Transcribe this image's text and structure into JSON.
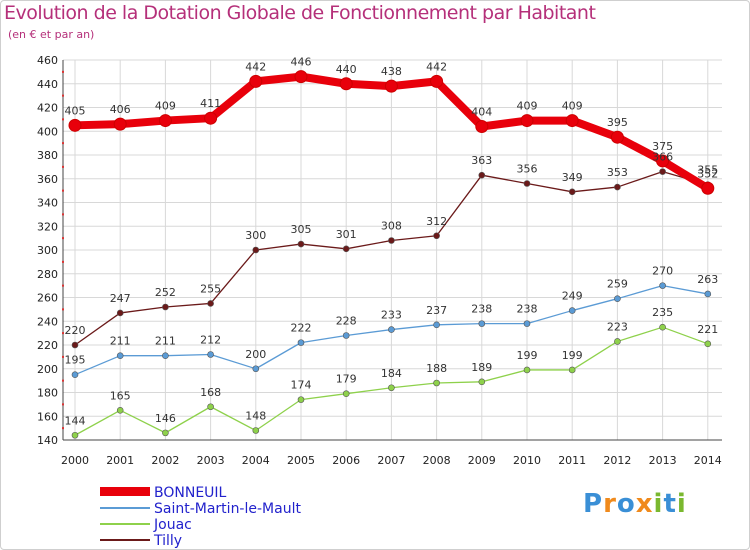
{
  "chart_data": {
    "type": "line",
    "title": "Evolution de la Dotation Globale de Fonctionnement par Habitant",
    "subtitle": "(en € et par an)",
    "xlabel": "",
    "ylabel": "",
    "ylim": [
      140,
      460
    ],
    "ytick_step": 20,
    "grid": true,
    "categories": [
      "2000",
      "2001",
      "2002",
      "2003",
      "2004",
      "2005",
      "2006",
      "2007",
      "2008",
      "2009",
      "2010",
      "2011",
      "2012",
      "2013",
      "2014"
    ],
    "series": [
      {
        "name": "BONNEUIL",
        "color": "#e8000b",
        "values": [
          405,
          406,
          409,
          411,
          442,
          446,
          440,
          438,
          442,
          404,
          409,
          409,
          395,
          375,
          352
        ]
      },
      {
        "name": "Saint-Martin-le-Mault",
        "color": "#5b9bd5",
        "values": [
          195,
          211,
          211,
          212,
          200,
          222,
          228,
          233,
          237,
          238,
          238,
          249,
          259,
          270,
          263
        ]
      },
      {
        "name": "Jouac",
        "color": "#8ed14b",
        "values": [
          144,
          165,
          146,
          168,
          148,
          174,
          179,
          184,
          188,
          189,
          199,
          199,
          223,
          235,
          221
        ]
      },
      {
        "name": "Tilly",
        "color": "#6b1a1a",
        "values": [
          220,
          247,
          252,
          255,
          300,
          305,
          301,
          308,
          312,
          363,
          356,
          349,
          353,
          366,
          355
        ]
      }
    ],
    "legend_position": "bottom-left"
  },
  "logo": {
    "letters": [
      "P",
      "r",
      "o",
      "x",
      "i",
      "t",
      "i"
    ]
  }
}
